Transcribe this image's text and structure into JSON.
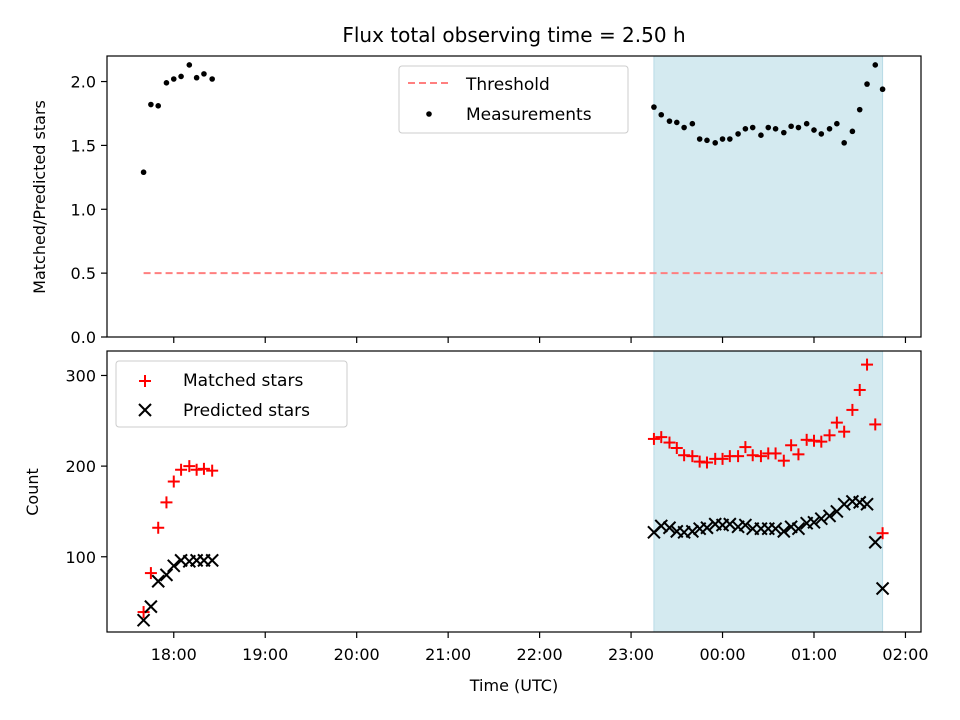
{
  "figure": {
    "title": "Flux total observing time = 2.50 h",
    "xlabel": "Time (UTC)"
  },
  "chart_data": [
    {
      "type": "scatter",
      "title": "Flux total observing time = 2.50 h",
      "ylabel": "Matched/Predicted stars",
      "xlabel": "",
      "x_unit": "hours since 00:00 UTC of first day",
      "xlim": [
        17.27,
        26.17
      ],
      "ylim": [
        0,
        2.2
      ],
      "yticks": [
        0.0,
        0.5,
        1.0,
        1.5,
        2.0
      ],
      "ytick_labels": [
        "0.0",
        "0.5",
        "1.0",
        "1.5",
        "2.0"
      ],
      "xticks": [
        18,
        19,
        20,
        21,
        22,
        23,
        24,
        25,
        26
      ],
      "shaded_region": {
        "x": [
          23.25,
          25.75
        ],
        "color": "#d4eaf0"
      },
      "legend_position": "top-center",
      "series": [
        {
          "name": "Threshold",
          "kind": "line",
          "style": "dashed",
          "color": "#ff7f7f",
          "x": [
            17.67,
            25.75
          ],
          "y": [
            0.5,
            0.5
          ]
        },
        {
          "name": "Measurements",
          "kind": "scatter",
          "marker": "dot",
          "color": "#000000",
          "x": [
            17.67,
            17.75,
            17.83,
            17.92,
            18.0,
            18.08,
            18.17,
            18.25,
            18.33,
            18.42,
            23.25,
            23.33,
            23.42,
            23.5,
            23.58,
            23.67,
            23.75,
            23.83,
            23.92,
            24.0,
            24.08,
            24.17,
            24.25,
            24.33,
            24.42,
            24.5,
            24.58,
            24.67,
            24.75,
            24.83,
            24.92,
            25.0,
            25.08,
            25.17,
            25.25,
            25.33,
            25.42,
            25.5,
            25.58,
            25.67,
            25.75
          ],
          "y": [
            1.29,
            1.82,
            1.81,
            1.99,
            2.02,
            2.04,
            2.13,
            2.03,
            2.06,
            2.02,
            1.8,
            1.74,
            1.69,
            1.68,
            1.64,
            1.67,
            1.55,
            1.54,
            1.52,
            1.55,
            1.55,
            1.59,
            1.63,
            1.64,
            1.58,
            1.64,
            1.63,
            1.6,
            1.65,
            1.64,
            1.67,
            1.62,
            1.59,
            1.63,
            1.67,
            1.52,
            1.61,
            1.78,
            1.98,
            2.13,
            1.94
          ]
        }
      ]
    },
    {
      "type": "scatter",
      "title": "",
      "ylabel": "Count",
      "xlabel": "Time (UTC)",
      "x_unit": "hours since 00:00 UTC of first day",
      "xlim": [
        17.27,
        26.17
      ],
      "ylim": [
        17,
        327
      ],
      "yticks": [
        100,
        200,
        300
      ],
      "ytick_labels": [
        "100",
        "200",
        "300"
      ],
      "xticks": [
        18,
        19,
        20,
        21,
        22,
        23,
        24,
        25,
        26
      ],
      "xtick_labels": [
        "18:00",
        "19:00",
        "20:00",
        "21:00",
        "22:00",
        "23:00",
        "00:00",
        "01:00",
        "02:00"
      ],
      "shaded_region": {
        "x": [
          23.25,
          25.75
        ],
        "color": "#d4eaf0"
      },
      "legend_position": "top-left",
      "series": [
        {
          "name": "Matched stars",
          "kind": "scatter",
          "marker": "plus",
          "color": "#ff0000",
          "x": [
            17.67,
            17.75,
            17.83,
            17.92,
            18.0,
            18.08,
            18.17,
            18.25,
            18.33,
            18.42,
            23.25,
            23.33,
            23.42,
            23.5,
            23.58,
            23.67,
            23.75,
            23.83,
            23.92,
            24.0,
            24.08,
            24.17,
            24.25,
            24.33,
            24.42,
            24.5,
            24.58,
            24.67,
            24.75,
            24.83,
            24.92,
            25.0,
            25.08,
            25.17,
            25.25,
            25.33,
            25.42,
            25.5,
            25.58,
            25.67,
            25.75
          ],
          "y": [
            39,
            82,
            132,
            160,
            183,
            196,
            200,
            196,
            197,
            195,
            230,
            232,
            226,
            220,
            212,
            211,
            205,
            204,
            208,
            208,
            211,
            211,
            221,
            212,
            211,
            214,
            214,
            206,
            223,
            213,
            229,
            228,
            227,
            234,
            248,
            238,
            262,
            284,
            312,
            246,
            126
          ]
        },
        {
          "name": "Predicted stars",
          "kind": "scatter",
          "marker": "x",
          "color": "#000000",
          "x": [
            17.67,
            17.75,
            17.83,
            17.92,
            18.0,
            18.08,
            18.17,
            18.25,
            18.33,
            18.42,
            23.25,
            23.33,
            23.42,
            23.5,
            23.58,
            23.67,
            23.75,
            23.83,
            23.92,
            24.0,
            24.08,
            24.17,
            24.25,
            24.33,
            24.42,
            24.5,
            24.58,
            24.67,
            24.75,
            24.83,
            24.92,
            25.0,
            25.08,
            25.17,
            25.25,
            25.33,
            25.42,
            25.5,
            25.58,
            25.67,
            25.75
          ],
          "y": [
            30,
            45,
            73,
            80,
            90,
            96,
            95,
            96,
            96,
            96,
            127,
            134,
            132,
            128,
            127,
            128,
            131,
            132,
            136,
            135,
            136,
            133,
            135,
            131,
            131,
            131,
            131,
            128,
            133,
            131,
            137,
            138,
            142,
            145,
            150,
            158,
            161,
            160,
            158,
            116,
            65
          ]
        }
      ]
    }
  ]
}
